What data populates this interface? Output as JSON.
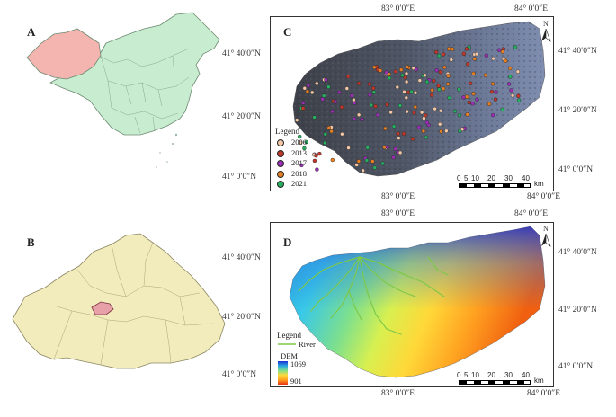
{
  "panels": {
    "a": "A",
    "b": "B",
    "c": "C",
    "d": "D"
  },
  "coords": {
    "lon_83": "83° 0′0″E",
    "lon_84": "84° 0′0″E",
    "lat_40": "41° 40′0″N",
    "lat_20": "41° 20′0″N",
    "lat_0": "41° 0′0″N"
  },
  "north_label": "N",
  "legend_c": {
    "title": "Legend",
    "items": [
      {
        "label": "2006",
        "color": "#f2c8a8"
      },
      {
        "label": "2013",
        "color": "#c0392b"
      },
      {
        "label": "2017",
        "color": "#9b30b5"
      },
      {
        "label": "2018",
        "color": "#e67e22"
      },
      {
        "label": "2021",
        "color": "#27ae60"
      }
    ]
  },
  "scale": {
    "ticks": [
      "0",
      "5",
      "10",
      "20",
      "30",
      "40"
    ],
    "unit": "km"
  },
  "legend_d": {
    "title": "Legend",
    "river_label": "River",
    "dem_label": "DEM",
    "dem_high": "1069",
    "dem_low": "901",
    "river_color": "#7ec84a"
  },
  "colors": {
    "china_fill": "#c8ecd0",
    "xinjiang_fill": "#f4b4b0",
    "xj_map_fill": "#f2ecbc",
    "study_fill": "#e8a0a8"
  }
}
